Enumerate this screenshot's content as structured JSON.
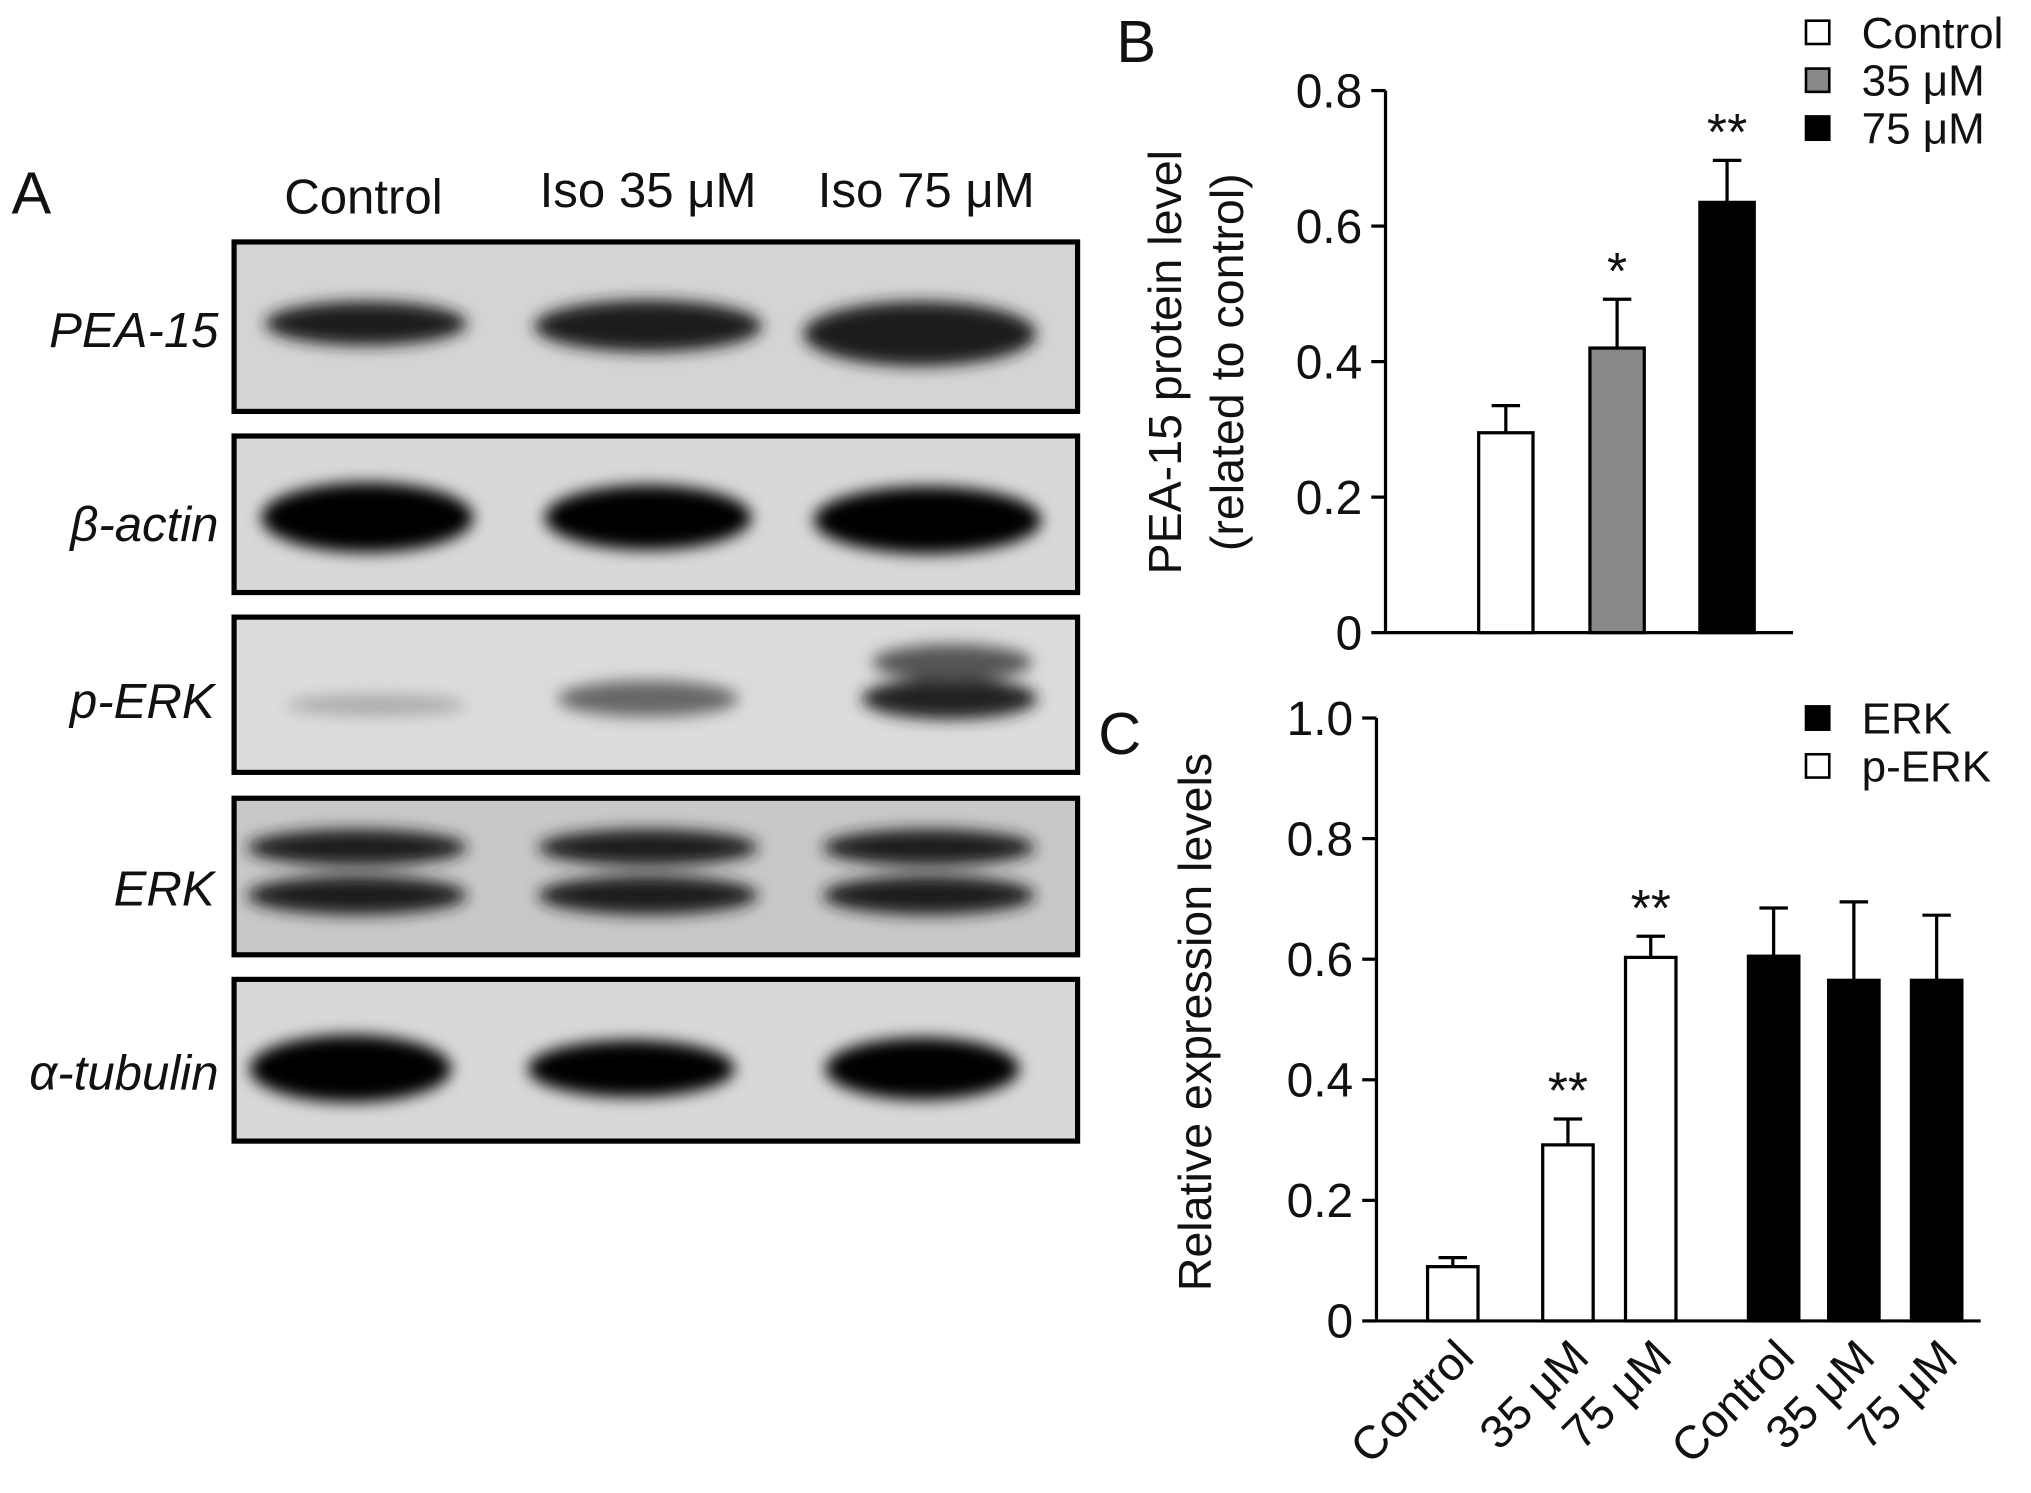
{
  "blot": {
    "panel": "A",
    "lanes": [
      "Control",
      "Iso 35 μM",
      "Iso 75 μM"
    ],
    "rows": [
      "PEA-15",
      "β-actin",
      "p-ERK",
      "ERK",
      "α-tubulin"
    ]
  },
  "chart_data": [
    {
      "type": "bar",
      "panel": "B",
      "ylabel": [
        "PEA-15 protein level",
        "(related to control)"
      ],
      "ylim": [
        0,
        0.8
      ],
      "yticks": [
        0,
        0.2,
        0.4,
        0.6,
        0.8
      ],
      "series": [
        {
          "name": "Control",
          "color": "#ffffff",
          "values": [
            0.295
          ],
          "errors": [
            0.04
          ],
          "annotations": [
            null
          ]
        },
        {
          "name": "35 μM",
          "color": "#888888",
          "values": [
            0.42
          ],
          "errors": [
            0.072
          ],
          "annotations": [
            "*"
          ]
        },
        {
          "name": "75 μM",
          "color": "#000000",
          "values": [
            0.635
          ],
          "errors": [
            0.062
          ],
          "annotations": [
            "**"
          ]
        }
      ]
    },
    {
      "type": "bar",
      "panel": "C",
      "ylabel": [
        "Relative expression levels"
      ],
      "ylim": [
        0,
        1
      ],
      "yticks": [
        0,
        0.2,
        0.4,
        0.6,
        0.8,
        {
          "value": 1,
          "label": "1.0"
        }
      ],
      "categories": [
        "Control",
        "35 μM",
        "75 μM",
        "Control",
        "35 μM",
        "75 μM"
      ],
      "series": [
        {
          "name": "ERK",
          "color": "#000000",
          "values": [
            null,
            null,
            null,
            0.605,
            0.565,
            0.565
          ],
          "errors": [
            null,
            null,
            null,
            0.08,
            0.13,
            0.108
          ],
          "annotations": [
            null,
            null,
            null,
            null,
            null,
            null
          ]
        },
        {
          "name": "p-ERK",
          "color": "#ffffff",
          "values": [
            0.09,
            0.292,
            0.603,
            null,
            null,
            null
          ],
          "errors": [
            0.015,
            0.043,
            0.035,
            null,
            null,
            null
          ],
          "annotations": [
            null,
            "**",
            "**",
            null,
            null,
            null
          ]
        }
      ]
    }
  ]
}
